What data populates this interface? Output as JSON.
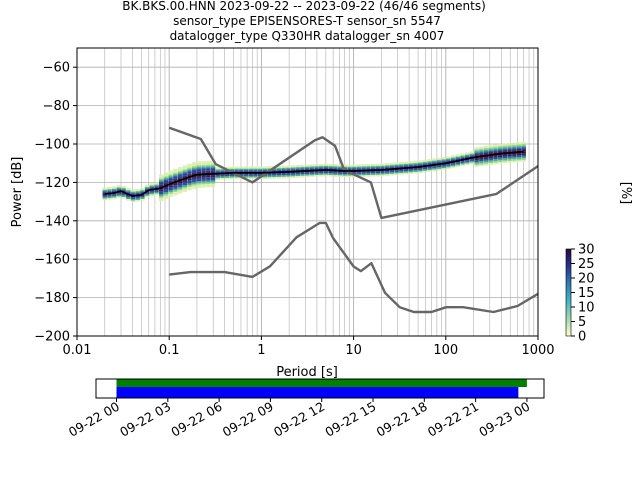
{
  "chart_data": [
    {
      "type": "line",
      "title_lines": [
        "BK.BKS.00.HNN   2023-09-22 -- 2023-09-22  (46/46 segments)",
        "sensor_type EPISENSORES-T sensor_sn 5547",
        "datalogger_type Q330HR datalogger_sn 4007"
      ],
      "xlabel": "Period [s]",
      "ylabel": "Power [dB]",
      "xscale": "log",
      "xlim": [
        0.01,
        1000
      ],
      "ylim": [
        -200,
        -50
      ],
      "x_ticks": [
        0.01,
        0.1,
        1,
        10,
        100,
        1000
      ],
      "x_tick_labels": [
        "0.01",
        "0.1",
        "1",
        "10",
        "100",
        "1000"
      ],
      "y_ticks": [
        -200,
        -180,
        -160,
        -140,
        -120,
        -100,
        -80,
        -60
      ],
      "y_tick_labels": [
        "−200",
        "−180",
        "−160",
        "−140",
        "−120",
        "−100",
        "−80",
        "−60"
      ],
      "grid": true,
      "series": [
        {
          "role": "high-noise-model",
          "color": "#666666",
          "x": [
            0.1,
            0.22,
            0.32,
            0.8,
            3.8,
            4.6,
            6.3,
            7.9,
            15.4,
            20,
            354.8,
            1000
          ],
          "y": [
            -91.5,
            -97.4,
            -110.5,
            -120,
            -98,
            -96.5,
            -101,
            -113.5,
            -120,
            -138.5,
            -126,
            -111.5
          ]
        },
        {
          "role": "low-noise-model",
          "color": "#666666",
          "x": [
            0.1,
            0.17,
            0.4,
            0.8,
            1.24,
            2.4,
            4.3,
            5,
            6,
            10,
            12,
            15.6,
            21.9,
            31.6,
            45,
            70,
            101,
            154,
            328,
            600,
            1000
          ],
          "y": [
            -168,
            -166.7,
            -166.7,
            -169.2,
            -163.7,
            -148.6,
            -141.1,
            -141.1,
            -149,
            -163.8,
            -166.2,
            -162.1,
            -177.5,
            -185,
            -187.5,
            -187.5,
            -185,
            -185,
            -187.5,
            -184.4,
            -178
          ]
        },
        {
          "role": "ppsd-mode",
          "color": "#000000",
          "x": [
            0.02,
            0.025,
            0.03,
            0.035,
            0.04,
            0.05,
            0.06,
            0.08,
            0.1,
            0.13,
            0.17,
            0.2,
            0.3,
            0.5,
            1,
            2,
            3,
            5,
            8,
            10,
            20,
            50,
            100,
            200,
            400,
            700
          ],
          "y": [
            -126,
            -125.5,
            -124.5,
            -126,
            -127,
            -126.5,
            -124,
            -123,
            -121,
            -119,
            -117,
            -116,
            -115.5,
            -115,
            -115,
            -114.5,
            -114,
            -113.5,
            -114,
            -114,
            -113.5,
            -112,
            -110,
            -107,
            -105,
            -104
          ]
        }
      ],
      "colorbar": {
        "label": "[%]",
        "min": 0,
        "max": 30,
        "ticks": [
          0,
          5,
          10,
          15,
          20,
          25,
          30
        ],
        "tick_labels": [
          "0",
          "5",
          "10",
          "15",
          "20",
          "25",
          "30"
        ]
      }
    },
    {
      "type": "bar",
      "orientation": "horizontal",
      "x_tick_labels": [
        "09-22 00",
        "09-22 03",
        "09-22 06",
        "09-22 09",
        "09-22 12",
        "09-22 15",
        "09-22 18",
        "09-22 21",
        "09-23 00"
      ],
      "x_tick_hours": [
        0,
        3,
        6,
        9,
        12,
        15,
        18,
        21,
        24
      ],
      "xlim_hours": [
        -1.2,
        25
      ],
      "series": [
        {
          "color": "#008000",
          "start_hour": 0,
          "end_hour": 24.0
        },
        {
          "color": "#0000ff",
          "start_hour": 0,
          "end_hour": 23.5
        }
      ]
    }
  ]
}
